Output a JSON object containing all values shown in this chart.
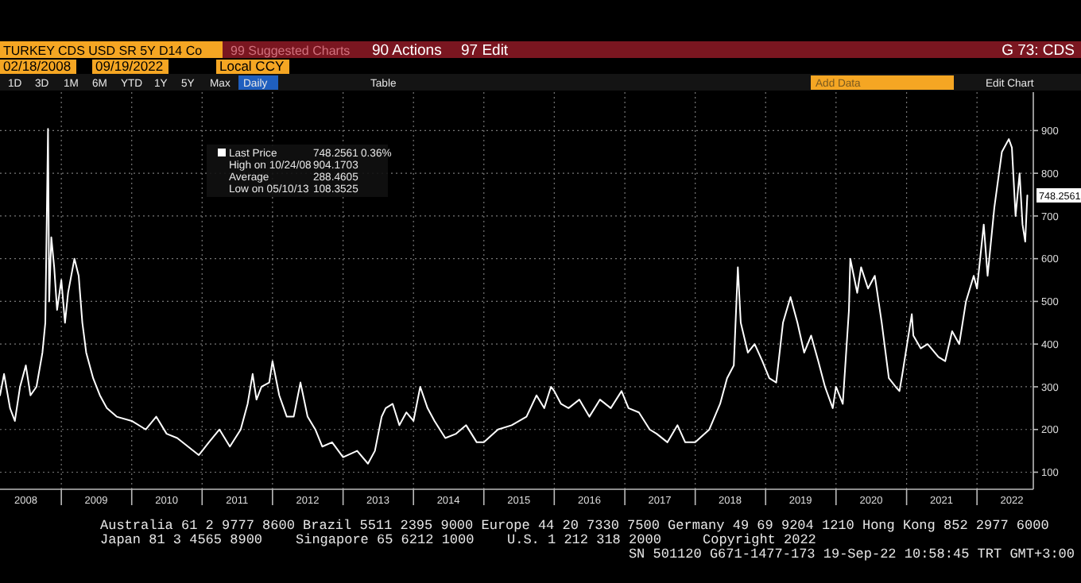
{
  "chart_data": {
    "type": "line",
    "title": "TURKEY CDS USD SR 5Y D14 Co",
    "x": [
      "2008-02-18",
      "2008-03-10",
      "2008-04-10",
      "2008-05-05",
      "2008-06-01",
      "2008-07-01",
      "2008-07-25",
      "2008-08-25",
      "2008-09-25",
      "2008-10-10",
      "2008-10-24",
      "2008-10-30",
      "2008-11-10",
      "2008-11-25",
      "2008-12-10",
      "2009-01-01",
      "2009-01-20",
      "2009-02-05",
      "2009-03-10",
      "2009-04-01",
      "2009-04-20",
      "2009-05-10",
      "2009-06-15",
      "2009-07-20",
      "2009-08-25",
      "2009-10-15",
      "2010-01-01",
      "2010-03-15",
      "2010-05-08",
      "2010-07-01",
      "2010-08-25",
      "2010-10-20",
      "2010-12-15",
      "2011-02-05",
      "2011-04-01",
      "2011-05-25",
      "2011-07-20",
      "2011-08-25",
      "2011-09-20",
      "2011-10-10",
      "2011-11-05",
      "2011-12-15",
      "2012-01-01",
      "2012-02-05",
      "2012-03-15",
      "2012-04-20",
      "2012-05-25",
      "2012-07-01",
      "2012-08-10",
      "2012-09-15",
      "2012-11-05",
      "2013-01-01",
      "2013-03-15",
      "2013-05-10",
      "2013-06-15",
      "2013-07-20",
      "2013-08-10",
      "2013-09-15",
      "2013-10-20",
      "2013-11-25",
      "2014-01-01",
      "2014-02-05",
      "2014-03-15",
      "2014-04-20",
      "2014-06-15",
      "2014-08-10",
      "2014-10-01",
      "2014-11-25",
      "2015-01-01",
      "2015-03-15",
      "2015-05-25",
      "2015-08-10",
      "2015-10-01",
      "2015-11-10",
      "2015-12-15",
      "2016-01-01",
      "2016-02-05",
      "2016-03-15",
      "2016-05-10",
      "2016-07-01",
      "2016-08-25",
      "2016-10-20",
      "2016-12-15",
      "2017-01-20",
      "2017-03-15",
      "2017-05-10",
      "2017-06-15",
      "2017-08-10",
      "2017-10-01",
      "2017-11-10",
      "2018-01-01",
      "2018-03-15",
      "2018-05-10",
      "2018-06-15",
      "2018-07-20",
      "2018-08-10",
      "2018-08-25",
      "2018-10-01",
      "2018-11-05",
      "2018-12-15",
      "2019-01-20",
      "2019-02-25",
      "2019-04-01",
      "2019-05-10",
      "2019-06-15",
      "2019-07-20",
      "2019-08-25",
      "2019-10-01",
      "2019-11-05",
      "2019-12-15",
      "2020-01-01",
      "2020-02-05",
      "2020-03-08",
      "2020-03-15",
      "2020-04-20",
      "2020-05-10",
      "2020-06-15",
      "2020-07-20",
      "2020-08-25",
      "2020-10-01",
      "2020-11-05",
      "2020-11-25",
      "2020-12-10",
      "2021-01-28",
      "2021-02-05",
      "2021-03-15",
      "2021-04-20",
      "2021-06-15",
      "2021-07-20",
      "2021-08-25",
      "2021-10-01",
      "2021-11-05",
      "2021-12-15",
      "2022-01-01",
      "2022-02-05",
      "2022-02-25",
      "2022-04-01",
      "2022-05-10",
      "2022-06-15",
      "2022-07-01",
      "2022-07-20",
      "2022-08-10",
      "2022-08-25",
      "2022-09-08",
      "2022-09-19"
    ],
    "series": [
      {
        "name": "Last Price",
        "color": "#ffffff",
        "values": [
          280,
          330,
          250,
          220,
          300,
          350,
          280,
          300,
          380,
          450,
          904,
          500,
          650,
          580,
          480,
          550,
          450,
          520,
          600,
          560,
          450,
          380,
          320,
          280,
          250,
          230,
          220,
          200,
          230,
          190,
          180,
          160,
          140,
          170,
          200,
          160,
          200,
          260,
          330,
          270,
          300,
          310,
          360,
          280,
          230,
          230,
          310,
          230,
          200,
          160,
          170,
          135,
          150,
          120,
          150,
          230,
          250,
          260,
          210,
          240,
          220,
          300,
          250,
          220,
          180,
          190,
          210,
          170,
          170,
          200,
          210,
          230,
          280,
          250,
          300,
          290,
          260,
          250,
          270,
          230,
          270,
          250,
          290,
          250,
          240,
          200,
          190,
          170,
          210,
          170,
          170,
          200,
          260,
          320,
          350,
          580,
          450,
          380,
          400,
          360,
          320,
          310,
          450,
          510,
          450,
          380,
          420,
          360,
          300,
          250,
          300,
          260,
          480,
          600,
          520,
          580,
          530,
          560,
          450,
          320,
          300,
          290,
          330,
          470,
          420,
          390,
          400,
          370,
          360,
          430,
          400,
          500,
          560,
          530,
          680,
          560,
          720,
          850,
          880,
          860,
          700,
          800,
          680,
          640,
          748.2561
        ]
      }
    ],
    "xlim": [
      "2008-02-18",
      "2022-10-20"
    ],
    "xticks": [
      {
        "value": "2008-07-01",
        "label": "2008"
      },
      {
        "value": "2009-01-01",
        "label": null
      },
      {
        "value": "2009-07-01",
        "label": "2009"
      },
      {
        "value": "2010-01-01",
        "label": null
      },
      {
        "value": "2010-07-01",
        "label": "2010"
      },
      {
        "value": "2011-01-01",
        "label": null
      },
      {
        "value": "2011-07-01",
        "label": "2011"
      },
      {
        "value": "2012-01-01",
        "label": null
      },
      {
        "value": "2012-07-01",
        "label": "2012"
      },
      {
        "value": "2013-01-01",
        "label": null
      },
      {
        "value": "2013-07-01",
        "label": "2013"
      },
      {
        "value": "2014-01-01",
        "label": null
      },
      {
        "value": "2014-07-01",
        "label": "2014"
      },
      {
        "value": "2015-01-01",
        "label": null
      },
      {
        "value": "2015-07-01",
        "label": "2015"
      },
      {
        "value": "2016-01-01",
        "label": null
      },
      {
        "value": "2016-07-01",
        "label": "2016"
      },
      {
        "value": "2017-01-01",
        "label": null
      },
      {
        "value": "2017-07-01",
        "label": "2017"
      },
      {
        "value": "2018-01-01",
        "label": null
      },
      {
        "value": "2018-07-01",
        "label": "2018"
      },
      {
        "value": "2019-01-01",
        "label": null
      },
      {
        "value": "2019-07-01",
        "label": "2019"
      },
      {
        "value": "2020-01-01",
        "label": null
      },
      {
        "value": "2020-07-01",
        "label": "2020"
      },
      {
        "value": "2021-01-01",
        "label": null
      },
      {
        "value": "2021-07-01",
        "label": "2021"
      },
      {
        "value": "2022-01-01",
        "label": null
      },
      {
        "value": "2022-07-01",
        "label": "2022"
      }
    ],
    "ylim": [
      60,
      990
    ],
    "yticks": [
      100,
      200,
      300,
      400,
      500,
      600,
      700,
      800,
      900
    ],
    "grid": true,
    "legend": "top left",
    "annotations": [
      {
        "text": "748.2561",
        "x": "2022-09-19",
        "y": 748.2561
      },
      "748.2561",
      "0.36%",
      "High on 10/24/08",
      "904.1703",
      "Average",
      "288.4605",
      "Low on 05/10/13",
      "108.3525",
      "99 Suggested Charts",
      "90 Actions",
      "97 Edit",
      "G 73: CDS",
      "02/18/2008",
      "09/19/2022",
      "Local CCY",
      "1D",
      "3D",
      "1M",
      "6M",
      "YTD",
      "1Y",
      "5Y",
      "Max",
      "Daily",
      "Table",
      "Add Data",
      "Edit Chart",
      "Australia 61 2 9777 8600 Brazil 5511 2395 9000 Europe 44 20 7330 7500 Germany 49 69 9204 1210 Hong Kong 852 2977 6000",
      "Japan 81 3 4565 8900",
      "Singapore 65 6212 1000",
      "U.S. 1 212 318 2000",
      "Copyright 2022",
      "SN 501120 G671-1477-173 19-Sep-22 10:58:45 TRT GMT+3:00"
    ]
  }
}
